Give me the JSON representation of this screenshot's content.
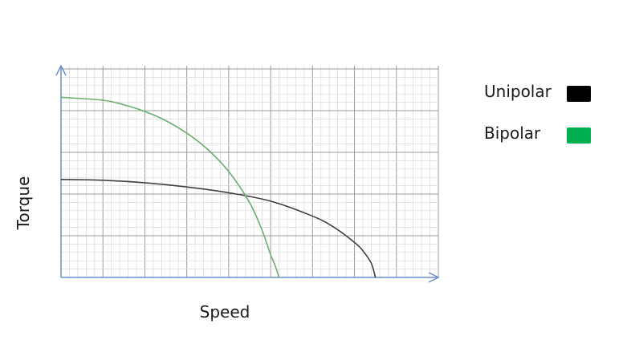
{
  "chart_data": {
    "type": "line",
    "xlabel": "Speed",
    "ylabel": "Torque",
    "xlim": [
      0,
      9
    ],
    "ylim": [
      0,
      5
    ],
    "grid": true,
    "legend_position": "right",
    "series": [
      {
        "name": "Unipolar",
        "color": "#000000",
        "line_color": "#404040",
        "x": [
          0,
          1,
          2,
          3,
          4,
          5,
          6,
          6.5,
          7,
          7.2,
          7.4,
          7.5
        ],
        "y": [
          2.35,
          2.33,
          2.27,
          2.17,
          2.03,
          1.83,
          1.47,
          1.21,
          0.84,
          0.64,
          0.34,
          0
        ]
      },
      {
        "name": "Bipolar",
        "color": "#00b050",
        "line_color": "#6aaf6e",
        "x": [
          0,
          1,
          1.5,
          2,
          2.5,
          3,
          3.5,
          4,
          4.5,
          4.8,
          5,
          5.1,
          5.2
        ],
        "y": [
          4.32,
          4.25,
          4.14,
          3.98,
          3.76,
          3.46,
          3.07,
          2.54,
          1.79,
          1.12,
          0.54,
          0.3,
          0
        ]
      }
    ]
  }
}
